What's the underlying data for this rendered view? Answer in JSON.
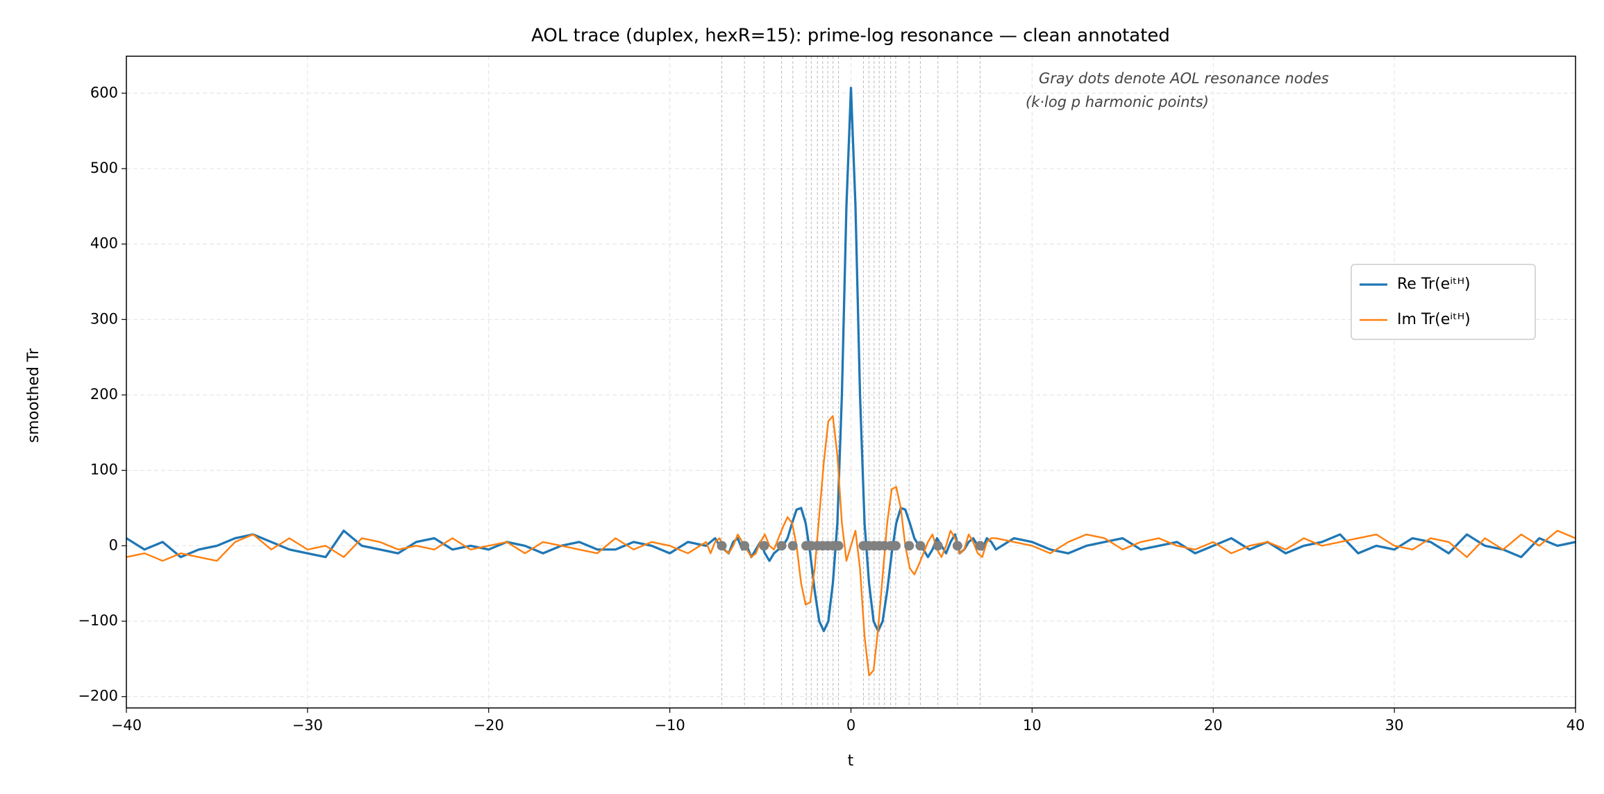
{
  "chart_data": {
    "type": "line",
    "title": "AOL trace (duplex, hexR=15): prime-log resonance — clean annotated",
    "xlabel": "t",
    "ylabel": "smoothed Tr",
    "annotation": [
      "Gray dots denote AOL resonance nodes",
      "(k·log p harmonic points)"
    ],
    "xlim": [
      -40,
      40
    ],
    "ylim": [
      -215,
      649
    ],
    "xticks": [
      {
        "value": -40,
        "label": "−40"
      },
      {
        "value": -30,
        "label": "−30"
      },
      {
        "value": -20,
        "label": "−20"
      },
      {
        "value": -10,
        "label": "−10"
      },
      0,
      10,
      20,
      30,
      40
    ],
    "yticks": [
      {
        "value": -200,
        "label": "−200"
      },
      {
        "value": -100,
        "label": "−100"
      },
      0,
      100,
      200,
      300,
      400,
      500,
      600
    ],
    "grid": true,
    "legend": "center right",
    "x": [
      -40,
      -39,
      -38,
      -37,
      -36,
      -35,
      -34,
      -33,
      -32,
      -31,
      -30,
      -29,
      -28,
      -27,
      -26,
      -25,
      -24,
      -23,
      -22,
      -21,
      -20,
      -19,
      -18,
      -17,
      -16,
      -15,
      -14,
      -13,
      -12,
      -11,
      -10,
      -9,
      -8,
      -7.75,
      -7.5,
      -7.25,
      -7,
      -6.75,
      -6.5,
      -6.25,
      -6,
      -5.75,
      -5.5,
      -5.25,
      -5,
      -4.75,
      -4.5,
      -4.25,
      -4,
      -3.75,
      -3.5,
      -3.25,
      -3,
      -2.75,
      -2.5,
      -2.25,
      -2,
      -1.75,
      -1.5,
      -1.25,
      -1,
      -0.75,
      -0.5,
      -0.25,
      0,
      0.25,
      0.5,
      0.75,
      1,
      1.25,
      1.5,
      1.75,
      2,
      2.25,
      2.5,
      2.75,
      3,
      3.25,
      3.5,
      3.75,
      4,
      4.25,
      4.5,
      4.75,
      5,
      5.25,
      5.5,
      5.75,
      6,
      6.25,
      6.5,
      6.75,
      7,
      7.25,
      7.5,
      7.75,
      8,
      9,
      10,
      11,
      12,
      13,
      14,
      15,
      16,
      17,
      18,
      19,
      20,
      21,
      22,
      23,
      24,
      25,
      26,
      27,
      28,
      29,
      30,
      31,
      32,
      33,
      34,
      35,
      36,
      37,
      38,
      39,
      40
    ],
    "series": [
      {
        "name": "Re Tr(eⁱᵗᴴ)",
        "color": "#1f77b4",
        "values": [
          10,
          -5,
          5,
          -15,
          -5,
          0,
          10,
          15,
          5,
          -5,
          -10,
          -15,
          20,
          0,
          -5,
          -10,
          5,
          10,
          -5,
          0,
          -5,
          5,
          0,
          -10,
          0,
          5,
          -5,
          -5,
          5,
          0,
          -10,
          5,
          0,
          5,
          10,
          0,
          -5,
          -10,
          5,
          10,
          -5,
          0,
          -15,
          -5,
          5,
          -10,
          -20,
          -10,
          -5,
          0,
          10,
          30,
          48,
          50,
          30,
          -10,
          -60,
          -100,
          -113,
          -100,
          -50,
          30,
          200,
          450,
          607,
          450,
          200,
          30,
          -50,
          -100,
          -113,
          -100,
          -60,
          -10,
          30,
          50,
          48,
          30,
          10,
          0,
          -5,
          -15,
          -5,
          10,
          0,
          -10,
          5,
          15,
          -10,
          -5,
          5,
          10,
          0,
          -5,
          10,
          5,
          -5,
          10,
          5,
          -5,
          -10,
          0,
          5,
          10,
          -5,
          0,
          5,
          -10,
          0,
          10,
          -5,
          5,
          -10,
          0,
          5,
          15,
          -10,
          0,
          -5,
          10,
          5,
          -10,
          15,
          0,
          -5,
          -15,
          10,
          0,
          5
        ]
      },
      {
        "name": "Im Tr(eⁱᵗᴴ)",
        "color": "#ff7f0e",
        "values": [
          -15,
          -10,
          -20,
          -10,
          -15,
          -20,
          5,
          15,
          -5,
          10,
          -5,
          0,
          -15,
          10,
          5,
          -5,
          0,
          -5,
          10,
          -5,
          0,
          5,
          -10,
          5,
          0,
          -5,
          -10,
          10,
          -5,
          5,
          0,
          -10,
          5,
          -10,
          5,
          10,
          -5,
          -10,
          0,
          15,
          5,
          -5,
          -15,
          -10,
          5,
          15,
          0,
          -5,
          10,
          25,
          38,
          30,
          0,
          -50,
          -78,
          -75,
          -30,
          40,
          110,
          165,
          172,
          120,
          30,
          -20,
          0,
          20,
          -30,
          -120,
          -172,
          -165,
          -110,
          -40,
          30,
          75,
          78,
          50,
          0,
          -30,
          -38,
          -25,
          -10,
          5,
          15,
          -5,
          -15,
          0,
          20,
          10,
          -10,
          -5,
          15,
          5,
          -10,
          -15,
          5,
          10,
          10,
          5,
          0,
          -10,
          5,
          15,
          10,
          -5,
          5,
          10,
          0,
          -5,
          5,
          -10,
          0,
          5,
          -5,
          10,
          0,
          5,
          10,
          15,
          0,
          -5,
          10,
          5,
          -15,
          10,
          -5,
          15,
          0,
          20,
          10
        ]
      }
    ],
    "nodes": {
      "color": "#808080",
      "x": [
        -7.13,
        -5.88,
        -4.8,
        -3.83,
        -3.21,
        -2.47,
        -2.19,
        -1.85,
        -1.56,
        -1.28,
        -0.99,
        -0.69,
        0.69,
        0.99,
        1.28,
        1.56,
        1.85,
        2.19,
        2.47,
        3.21,
        3.83,
        4.8,
        5.88,
        7.13
      ],
      "y": [
        0,
        0,
        0,
        0,
        0,
        0,
        0,
        0,
        0,
        0,
        0,
        0,
        0,
        0,
        0,
        0,
        0,
        0,
        0,
        0,
        0,
        0,
        0,
        0
      ]
    }
  }
}
